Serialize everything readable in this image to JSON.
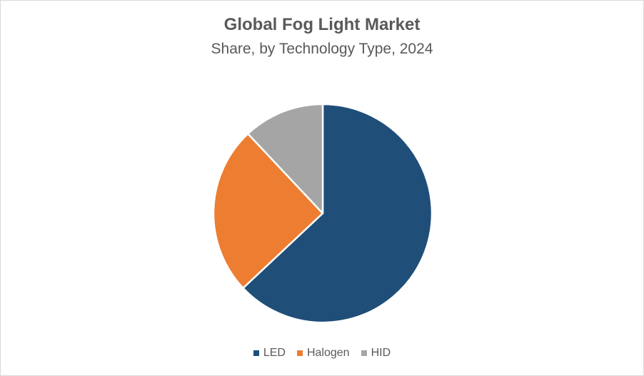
{
  "chart": {
    "title": "Global Fog Light Market",
    "subtitle": "Share, by Technology Type, 2024"
  },
  "legend": [
    {
      "label": "LED",
      "color": "#1f4e79"
    },
    {
      "label": "Halogen",
      "color": "#ed7d31"
    },
    {
      "label": "HID",
      "color": "#a5a5a5"
    }
  ],
  "chart_data": {
    "type": "pie",
    "title": "Global Fog Light Market",
    "subtitle": "Share, by Technology Type, 2024",
    "categories": [
      "LED",
      "Halogen",
      "HID"
    ],
    "values": [
      63,
      25,
      12
    ],
    "unit": "%",
    "colors": [
      "#1f4e79",
      "#ed7d31",
      "#a5a5a5"
    ],
    "start_angle": "12 o'clock, clockwise",
    "data_labels": false,
    "legend_position": "bottom"
  }
}
